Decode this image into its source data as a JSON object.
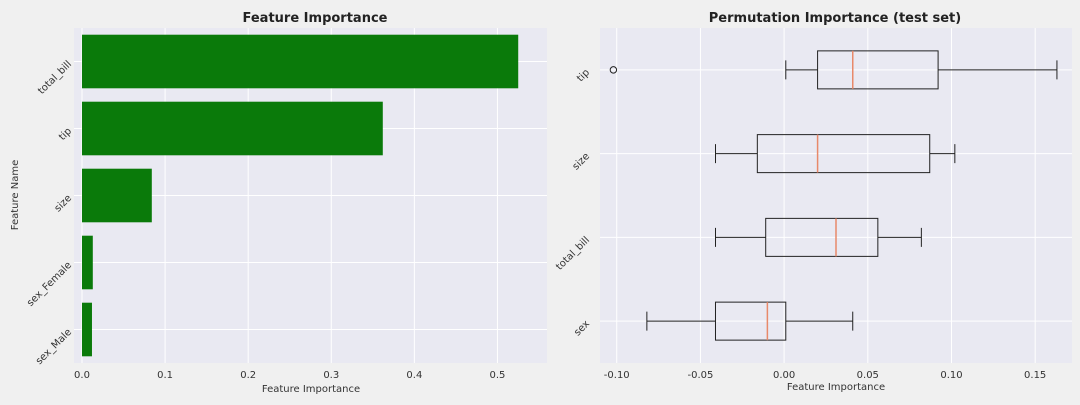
{
  "chart_data": [
    {
      "type": "bar",
      "orientation": "horizontal",
      "title": "Feature Importance",
      "xlabel": "Feature Importance",
      "ylabel": "Feature Name",
      "categories": [
        "total_bill",
        "tip",
        "size",
        "sex_Female",
        "sex_Male"
      ],
      "values": [
        0.525,
        0.362,
        0.084,
        0.013,
        0.012
      ],
      "xlim": [
        0,
        0.55
      ],
      "xticks": [
        "0.0",
        "0.1",
        "0.2",
        "0.3",
        "0.4",
        "0.5"
      ],
      "bar_color": "#0a7a0a",
      "grid": true
    },
    {
      "type": "boxplot",
      "orientation": "horizontal",
      "title": "Permutation Importance (test set)",
      "xlabel": "Feature Importance",
      "categories": [
        "tip",
        "size",
        "total_bill",
        "sex"
      ],
      "boxes": [
        {
          "label": "tip",
          "whisker_low": 0.001,
          "q1": 0.02,
          "median": 0.041,
          "q3": 0.092,
          "whisker_high": 0.163,
          "outliers": [
            -0.102
          ]
        },
        {
          "label": "size",
          "whisker_low": -0.041,
          "q1": -0.016,
          "median": 0.02,
          "q3": 0.087,
          "whisker_high": 0.102,
          "outliers": []
        },
        {
          "label": "total_bill",
          "whisker_low": -0.041,
          "q1": -0.011,
          "median": 0.031,
          "q3": 0.056,
          "whisker_high": 0.082,
          "outliers": []
        },
        {
          "label": "sex",
          "whisker_low": -0.082,
          "q1": -0.041,
          "median": -0.01,
          "q3": 0.001,
          "whisker_high": 0.041,
          "outliers": []
        }
      ],
      "xlim": [
        -0.11,
        0.172
      ],
      "xticks": [
        "-0.10",
        "-0.05",
        "0.00",
        "0.05",
        "0.10",
        "0.15"
      ],
      "median_color": "#e8896a",
      "grid": true
    }
  ],
  "colors": {
    "figure_bg": "#f0f0f0",
    "axes_bg": "#e9e9f2",
    "grid": "#ffffff"
  }
}
